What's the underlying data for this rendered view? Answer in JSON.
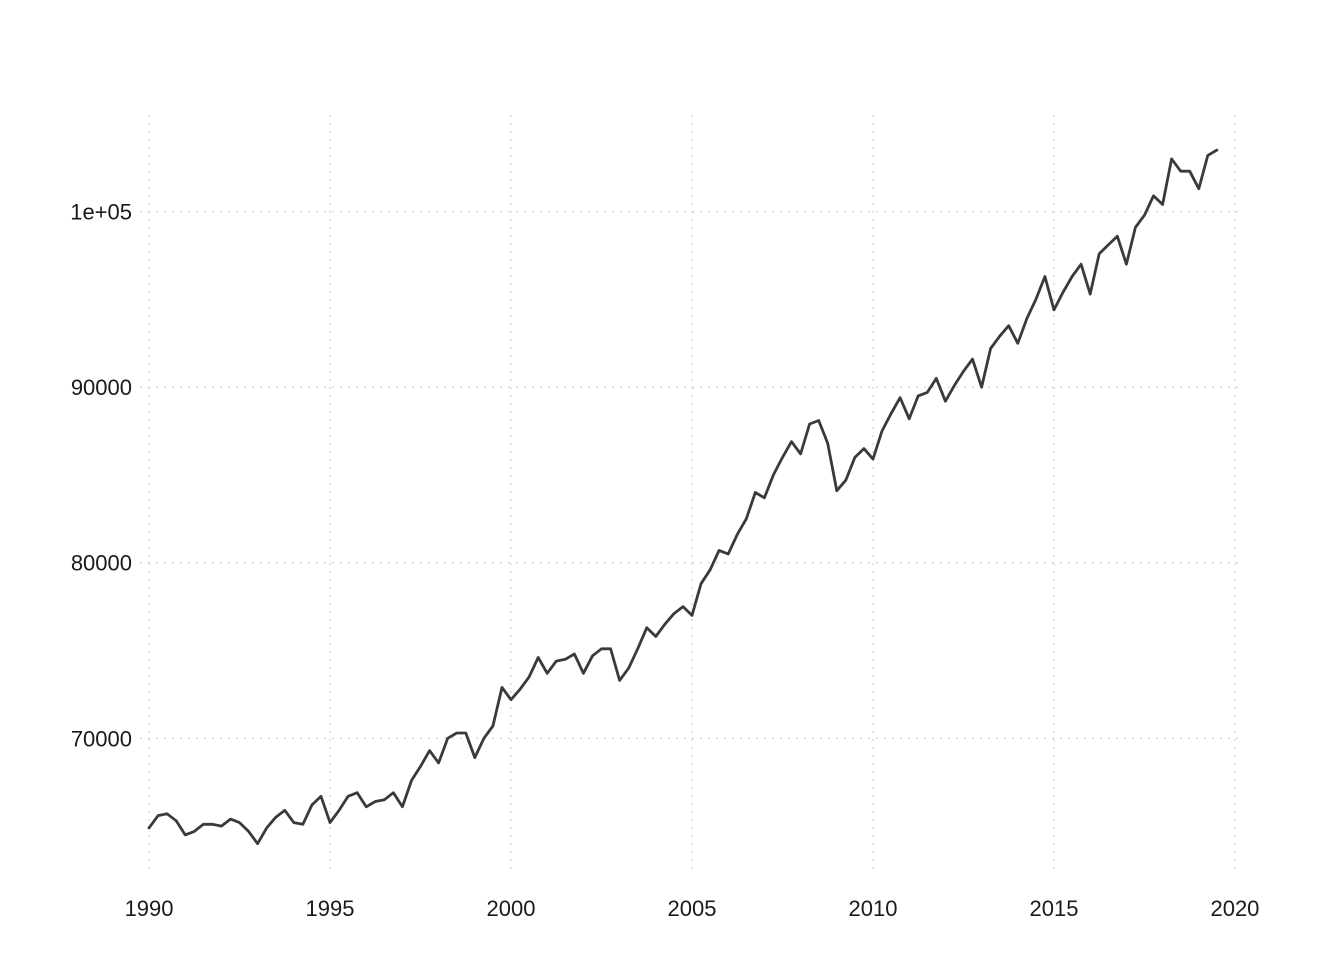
{
  "chart_data": {
    "type": "line",
    "title": "",
    "xlabel": "",
    "ylabel": "",
    "xlim": [
      1989.75,
      2020.25
    ],
    "ylim": [
      62500,
      105500
    ],
    "grid": true,
    "legend": "none",
    "x_ticks": [
      1990,
      1995,
      2000,
      2005,
      2010,
      2015,
      2020
    ],
    "x_tick_labels": [
      "1990",
      "1995",
      "2000",
      "2005",
      "2010",
      "2015",
      "2020"
    ],
    "y_ticks": [
      70000,
      80000,
      90000,
      100000
    ],
    "y_tick_labels": [
      "70000",
      "80000",
      "90000",
      "1e+05"
    ],
    "line_color": "#3a3a3a",
    "grid_color": "#cfcfcf",
    "series": [
      {
        "x": [
          1990.0,
          1990.25,
          1990.5,
          1990.75,
          1991.0,
          1991.25,
          1991.5,
          1991.75,
          1992.0,
          1992.25,
          1992.5,
          1992.75,
          1993.0,
          1993.25,
          1993.5,
          1993.75,
          1994.0,
          1994.25,
          1994.5,
          1994.75,
          1995.0,
          1995.25,
          1995.5,
          1995.75,
          1996.0,
          1996.25,
          1996.5,
          1996.75,
          1997.0,
          1997.25,
          1997.5,
          1997.75,
          1998.0,
          1998.25,
          1998.5,
          1998.75,
          1999.0,
          1999.25,
          1999.5,
          1999.75,
          2000.0,
          2000.25,
          2000.5,
          2000.75,
          2001.0,
          2001.25,
          2001.5,
          2001.75,
          2002.0,
          2002.25,
          2002.5,
          2002.75,
          2003.0,
          2003.25,
          2003.5,
          2003.75,
          2004.0,
          2004.25,
          2004.5,
          2004.75,
          2005.0,
          2005.25,
          2005.5,
          2005.75,
          2006.0,
          2006.25,
          2006.5,
          2006.75,
          2007.0,
          2007.25,
          2007.5,
          2007.75,
          2008.0,
          2008.25,
          2008.5,
          2008.75,
          2009.0,
          2009.25,
          2009.5,
          2009.75,
          2010.0,
          2010.25,
          2010.5,
          2010.75,
          2011.0,
          2011.25,
          2011.5,
          2011.75,
          2012.0,
          2012.25,
          2012.5,
          2012.75,
          2013.0,
          2013.25,
          2013.5,
          2013.75,
          2014.0,
          2014.25,
          2014.5,
          2014.75,
          2015.0,
          2015.25,
          2015.5,
          2015.75,
          2016.0,
          2016.25,
          2016.5,
          2016.75,
          2017.0,
          2017.25,
          2017.5,
          2017.75,
          2018.0,
          2018.25,
          2018.5,
          2018.75,
          2019.0,
          2019.25,
          2019.5
        ],
        "values": [
          64900,
          65600,
          65700,
          65300,
          64500,
          64700,
          65100,
          65100,
          65000,
          65400,
          65200,
          64700,
          64000,
          64900,
          65500,
          65900,
          65200,
          65100,
          66200,
          66700,
          65200,
          65900,
          66700,
          66900,
          66100,
          66400,
          66500,
          66900,
          66100,
          67600,
          68400,
          69300,
          68600,
          70000,
          70300,
          70300,
          68900,
          70000,
          70700,
          72900,
          72200,
          72800,
          73500,
          74600,
          73700,
          74400,
          74500,
          74800,
          73700,
          74700,
          75100,
          75100,
          73300,
          74000,
          75100,
          76300,
          75800,
          76500,
          77100,
          77500,
          77000,
          78800,
          79600,
          80700,
          80500,
          81600,
          82500,
          84000,
          83700,
          85000,
          86000,
          86900,
          86200,
          87900,
          88100,
          86800,
          84100,
          84700,
          86000,
          86500,
          85900,
          87500,
          88500,
          89400,
          88200,
          89500,
          89700,
          90500,
          89200,
          90100,
          90900,
          91600,
          90000,
          92200,
          92900,
          93500,
          92500,
          93900,
          95000,
          96300,
          94400,
          95400,
          96300,
          97000,
          95300,
          97600,
          98100,
          98600,
          97000,
          99100,
          99800,
          100900,
          100400,
          103000,
          102300,
          102300,
          101300,
          103200,
          103500
        ]
      }
    ]
  }
}
